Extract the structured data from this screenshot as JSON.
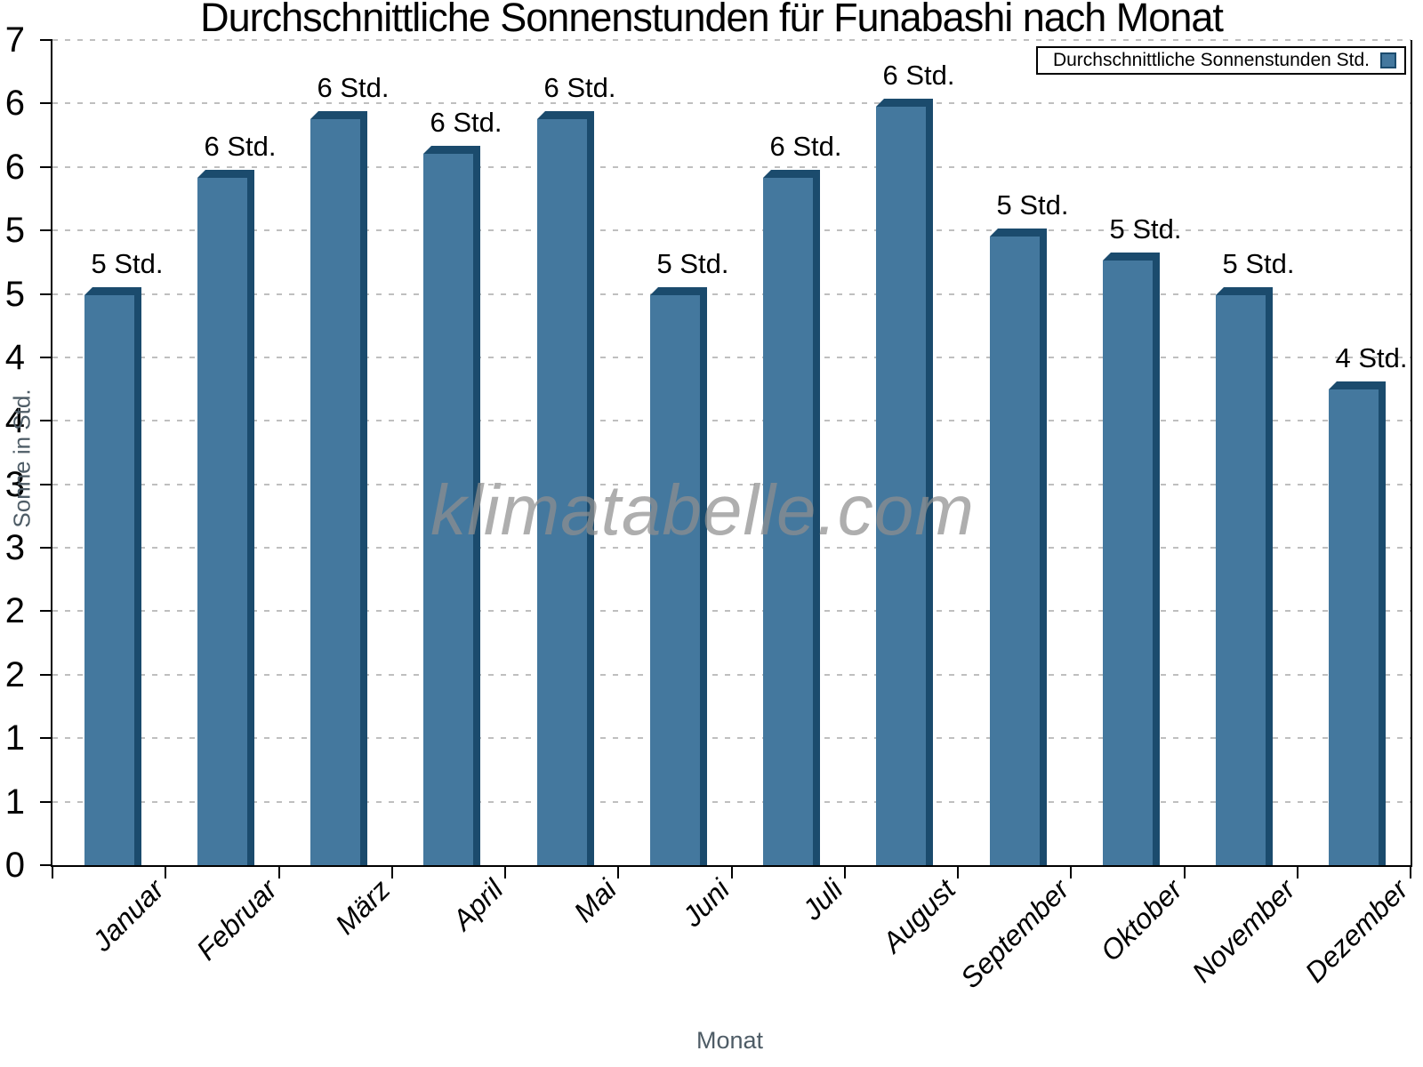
{
  "title": "Durchschnittliche Sonnenstunden für Funabashi nach Monat",
  "watermark": "klimatabelle.com",
  "legend": {
    "label": "Durchschnittliche Sonnenstunden Std.",
    "position": "top-right"
  },
  "axes": {
    "x_title": "Monat",
    "y_title": "Sonne in Std.",
    "y_tick_labels_top_to_bottom": [
      "7",
      "6",
      "6",
      "5",
      "5",
      "4",
      "4",
      "3",
      "3",
      "2",
      "2",
      "1",
      "1",
      "0"
    ]
  },
  "colors": {
    "bar_fill": "#44789e",
    "bar_edge_dark": "#1b4b6d",
    "axis": "#000000",
    "grid": "#bfbfbf",
    "axis_title_gray": "#4e5c66",
    "watermark_gray": "#8f8f8f"
  },
  "chart_data": {
    "type": "bar",
    "title": "Durchschnittliche Sonnenstunden für Funabashi nach Monat",
    "categories": [
      "Januar",
      "Februar",
      "März",
      "April",
      "Mai",
      "Juni",
      "Juli",
      "August",
      "September",
      "Oktober",
      "November",
      "Dezember"
    ],
    "values": [
      4.9,
      5.9,
      6.4,
      6.1,
      6.4,
      4.9,
      5.9,
      6.5,
      5.4,
      5.2,
      4.9,
      4.1
    ],
    "bar_labels": [
      "5 Std.",
      "6 Std.",
      "6 Std.",
      "6 Std.",
      "6 Std.",
      "5 Std.",
      "6 Std.",
      "6 Std.",
      "5 Std.",
      "5 Std.",
      "5 Std.",
      "4 Std."
    ],
    "series_name": "Durchschnittliche Sonnenstunden Std.",
    "xlabel": "Monat",
    "ylabel": "Sonne in Std.",
    "ylim": [
      0,
      7
    ],
    "y_tick_count": 14,
    "grid": "horizontal-dashed",
    "legend_position": "top-right"
  }
}
